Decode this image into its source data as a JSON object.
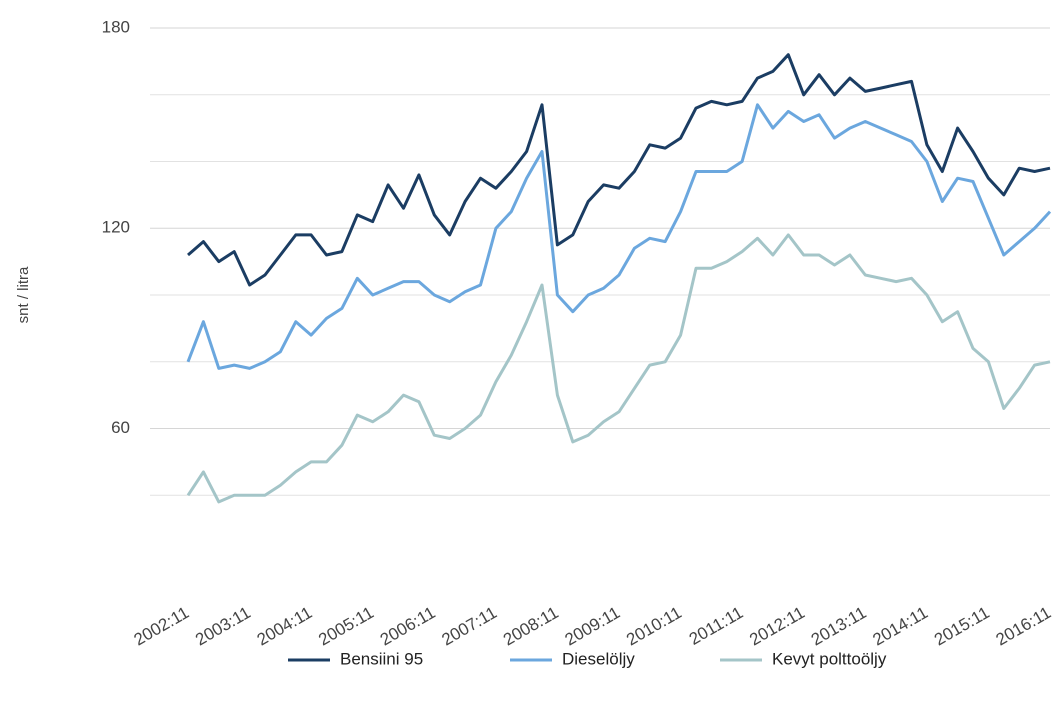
{
  "chart_data": {
    "type": "line",
    "ylabel": "snt / litra",
    "categories": [
      "2002:11",
      null,
      null,
      null,
      "2003:11",
      null,
      null,
      null,
      "2004:11",
      null,
      null,
      null,
      "2005:11",
      null,
      null,
      null,
      "2006:11",
      null,
      null,
      null,
      "2007:11",
      null,
      null,
      null,
      "2008:11",
      null,
      null,
      null,
      "2009:11",
      null,
      null,
      null,
      "2010:11",
      null,
      null,
      null,
      "2011:11",
      null,
      null,
      null,
      "2012:11",
      null,
      null,
      null,
      "2013:11",
      null,
      null,
      null,
      "2014:11",
      null,
      null,
      null,
      "2015:11",
      null,
      null,
      null,
      "2016:11"
    ],
    "series": [
      {
        "name": "Bensiini 95",
        "color": "#1b3d63",
        "values": [
          112,
          116,
          110,
          113,
          103,
          106,
          112,
          118,
          118,
          112,
          113,
          124,
          122,
          133,
          126,
          136,
          124,
          118,
          128,
          135,
          132,
          137,
          143,
          157,
          115,
          118,
          128,
          133,
          132,
          137,
          145,
          144,
          147,
          156,
          158,
          157,
          158,
          165,
          167,
          172,
          160,
          166,
          160,
          165,
          161,
          162,
          163,
          164,
          145,
          137,
          150,
          143,
          135,
          130,
          138,
          137,
          138
        ]
      },
      {
        "name": "Dieselöljy",
        "color": "#6ba7de",
        "values": [
          80,
          92,
          78,
          79,
          78,
          80,
          83,
          92,
          88,
          93,
          96,
          105,
          100,
          102,
          104,
          104,
          100,
          98,
          101,
          103,
          120,
          125,
          135,
          143,
          100,
          95,
          100,
          102,
          106,
          114,
          117,
          116,
          125,
          137,
          137,
          137,
          140,
          157,
          150,
          155,
          152,
          154,
          147,
          150,
          152,
          150,
          148,
          146,
          140,
          128,
          135,
          134,
          123,
          112,
          116,
          120,
          125
        ]
      },
      {
        "name": "Kevyt polttoöljy",
        "color": "#a4c5c8",
        "values": [
          40,
          47,
          38,
          40,
          40,
          40,
          43,
          47,
          50,
          50,
          55,
          64,
          62,
          65,
          70,
          68,
          58,
          57,
          60,
          64,
          74,
          82,
          92,
          103,
          70,
          56,
          58,
          62,
          65,
          72,
          79,
          80,
          88,
          108,
          108,
          110,
          113,
          117,
          112,
          118,
          112,
          112,
          109,
          112,
          106,
          105,
          104,
          105,
          100,
          92,
          95,
          84,
          80,
          66,
          72,
          79,
          80
        ]
      }
    ],
    "ylim": [
      20,
      180
    ],
    "yticks": [
      60,
      120,
      180
    ],
    "minor_yticks": [
      40,
      80,
      100,
      140,
      160
    ],
    "grid": true,
    "legend": "bottom"
  }
}
